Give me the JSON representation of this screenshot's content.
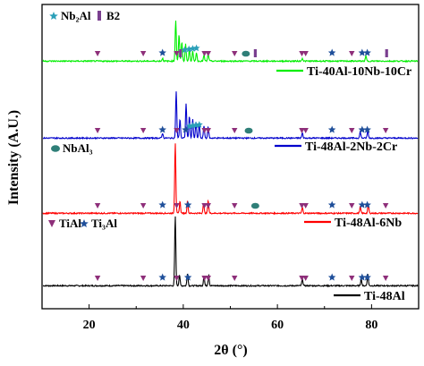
{
  "chart_data": {
    "type": "line",
    "xlabel": "2θ (°)",
    "ylabel": "Intensity (A.U.)",
    "xlim": [
      10,
      90
    ],
    "xticks": [
      20,
      40,
      60,
      80
    ],
    "grid": false,
    "legend_placement": "right, one label under each pattern",
    "phase_legends": [
      {
        "label": "Nb₂Al",
        "symbol": "star",
        "color": "#2a9fb8"
      },
      {
        "label": "B2",
        "symbol": "bar",
        "color": "#7a3f8f"
      },
      {
        "label": "NbAl₃",
        "symbol": "ellipse",
        "color": "#2f7f78"
      },
      {
        "label": "TiAl",
        "symbol": "triangle",
        "color": "#8e2f7a"
      },
      {
        "label": "Ti₃Al",
        "symbol": "star",
        "color": "#1f4f9a"
      }
    ],
    "series": [
      {
        "name": "Ti-48Al",
        "color": "#000000",
        "peaks": [
          {
            "x": 38.3,
            "h": 1.0
          },
          {
            "x": 39.2,
            "h": 0.16
          },
          {
            "x": 40.9,
            "h": 0.18
          },
          {
            "x": 44.4,
            "h": 0.14
          },
          {
            "x": 45.4,
            "h": 0.16
          },
          {
            "x": 65.3,
            "h": 0.1
          },
          {
            "x": 77.8,
            "h": 0.1
          },
          {
            "x": 79.2,
            "h": 0.17
          }
        ],
        "markers": [
          {
            "x": 21.8,
            "type": "triangle"
          },
          {
            "x": 31.5,
            "type": "triangle"
          },
          {
            "x": 35.6,
            "type": "star-dark"
          },
          {
            "x": 38.6,
            "type": "triangle"
          },
          {
            "x": 41.0,
            "type": "star-dark"
          },
          {
            "x": 44.5,
            "type": "triangle"
          },
          {
            "x": 45.3,
            "type": "triangle"
          },
          {
            "x": 50.9,
            "type": "triangle"
          },
          {
            "x": 65.2,
            "type": "triangle"
          },
          {
            "x": 66.0,
            "type": "triangle"
          },
          {
            "x": 71.6,
            "type": "star-dark"
          },
          {
            "x": 75.8,
            "type": "triangle"
          },
          {
            "x": 78.0,
            "type": "star-dark"
          },
          {
            "x": 79.1,
            "type": "star-dark"
          },
          {
            "x": 83.0,
            "type": "triangle"
          }
        ]
      },
      {
        "name": "Ti-48Al-6Nb",
        "color": "#ff0000",
        "peaks": [
          {
            "x": 38.3,
            "h": 1.0
          },
          {
            "x": 39.3,
            "h": 0.17
          },
          {
            "x": 40.9,
            "h": 0.17
          },
          {
            "x": 44.3,
            "h": 0.14
          },
          {
            "x": 45.3,
            "h": 0.18
          },
          {
            "x": 65.3,
            "h": 0.08
          },
          {
            "x": 77.6,
            "h": 0.09
          },
          {
            "x": 79.3,
            "h": 0.12
          }
        ],
        "markers": [
          {
            "x": 21.8,
            "type": "triangle"
          },
          {
            "x": 31.5,
            "type": "triangle"
          },
          {
            "x": 35.6,
            "type": "star-dark"
          },
          {
            "x": 38.6,
            "type": "triangle"
          },
          {
            "x": 41.0,
            "type": "star-dark"
          },
          {
            "x": 44.5,
            "type": "triangle"
          },
          {
            "x": 45.3,
            "type": "triangle"
          },
          {
            "x": 50.9,
            "type": "triangle"
          },
          {
            "x": 55.3,
            "type": "ellipse"
          },
          {
            "x": 65.2,
            "type": "triangle"
          },
          {
            "x": 66.0,
            "type": "triangle"
          },
          {
            "x": 71.6,
            "type": "star-dark"
          },
          {
            "x": 75.8,
            "type": "triangle"
          },
          {
            "x": 78.0,
            "type": "star-dark"
          },
          {
            "x": 79.1,
            "type": "star-dark"
          },
          {
            "x": 83.0,
            "type": "triangle"
          }
        ]
      },
      {
        "name": "Ti-48Al-2Nb-2Cr",
        "color": "#0000cc",
        "peaks": [
          {
            "x": 38.5,
            "h": 0.75
          },
          {
            "x": 39.3,
            "h": 0.3
          },
          {
            "x": 40.6,
            "h": 0.55
          },
          {
            "x": 41.3,
            "h": 0.35
          },
          {
            "x": 42.0,
            "h": 0.3
          },
          {
            "x": 42.7,
            "h": 0.25
          },
          {
            "x": 43.4,
            "h": 0.22
          },
          {
            "x": 44.4,
            "h": 0.2
          },
          {
            "x": 45.3,
            "h": 0.18
          },
          {
            "x": 35.6,
            "h": 0.08
          },
          {
            "x": 65.3,
            "h": 0.08
          },
          {
            "x": 77.6,
            "h": 0.1
          },
          {
            "x": 79.2,
            "h": 0.12
          }
        ],
        "markers": [
          {
            "x": 21.8,
            "type": "triangle"
          },
          {
            "x": 31.5,
            "type": "triangle"
          },
          {
            "x": 35.6,
            "type": "star-dark"
          },
          {
            "x": 38.6,
            "type": "triangle"
          },
          {
            "x": 40.5,
            "type": "star-dark"
          },
          {
            "x": 41.3,
            "type": "star-light"
          },
          {
            "x": 42.0,
            "type": "star-light"
          },
          {
            "x": 42.7,
            "type": "star-light"
          },
          {
            "x": 43.4,
            "type": "star-light"
          },
          {
            "x": 44.5,
            "type": "triangle"
          },
          {
            "x": 45.3,
            "type": "triangle"
          },
          {
            "x": 50.9,
            "type": "triangle"
          },
          {
            "x": 53.9,
            "type": "ellipse"
          },
          {
            "x": 65.2,
            "type": "triangle"
          },
          {
            "x": 66.0,
            "type": "triangle"
          },
          {
            "x": 71.6,
            "type": "star-dark"
          },
          {
            "x": 75.8,
            "type": "triangle"
          },
          {
            "x": 78.0,
            "type": "star-dark"
          },
          {
            "x": 79.1,
            "type": "star-dark"
          },
          {
            "x": 83.0,
            "type": "triangle"
          }
        ]
      },
      {
        "name": "Ti-40Al-10Nb-10Cr",
        "color": "#00ee00",
        "peaks": [
          {
            "x": 38.4,
            "h": 0.85
          },
          {
            "x": 39.1,
            "h": 0.55
          },
          {
            "x": 39.7,
            "h": 0.4
          },
          {
            "x": 40.5,
            "h": 0.35
          },
          {
            "x": 41.3,
            "h": 0.25
          },
          {
            "x": 42.0,
            "h": 0.2
          },
          {
            "x": 42.8,
            "h": 0.18
          },
          {
            "x": 44.4,
            "h": 0.12
          },
          {
            "x": 45.3,
            "h": 0.15
          },
          {
            "x": 35.6,
            "h": 0.06
          },
          {
            "x": 65.3,
            "h": 0.06
          },
          {
            "x": 78.8,
            "h": 0.1
          }
        ],
        "markers": [
          {
            "x": 21.8,
            "type": "triangle"
          },
          {
            "x": 31.5,
            "type": "triangle"
          },
          {
            "x": 35.6,
            "type": "star-dark"
          },
          {
            "x": 38.6,
            "type": "triangle"
          },
          {
            "x": 39.4,
            "type": "bar"
          },
          {
            "x": 40.3,
            "type": "star-light"
          },
          {
            "x": 41.2,
            "type": "star-light"
          },
          {
            "x": 42.0,
            "type": "star-light"
          },
          {
            "x": 42.8,
            "type": "star-light"
          },
          {
            "x": 44.5,
            "type": "triangle"
          },
          {
            "x": 45.3,
            "type": "triangle"
          },
          {
            "x": 50.9,
            "type": "triangle"
          },
          {
            "x": 53.3,
            "type": "ellipse"
          },
          {
            "x": 55.3,
            "type": "bar"
          },
          {
            "x": 65.2,
            "type": "triangle"
          },
          {
            "x": 66.0,
            "type": "triangle"
          },
          {
            "x": 71.6,
            "type": "star-dark"
          },
          {
            "x": 75.8,
            "type": "triangle"
          },
          {
            "x": 78.0,
            "type": "star-dark"
          },
          {
            "x": 79.1,
            "type": "star-dark"
          },
          {
            "x": 83.2,
            "type": "bar"
          }
        ]
      }
    ]
  }
}
